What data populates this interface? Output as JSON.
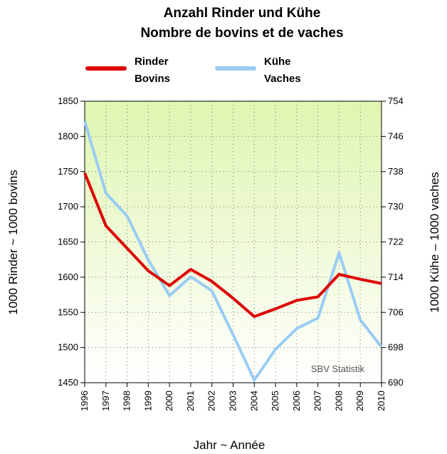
{
  "chart_data": {
    "type": "line",
    "title": "Anzahl Rinder und Kühe",
    "subtitle": "Nombre de bovins et de vaches",
    "x_label": "Jahr ~ Année",
    "y_label": "1000 Rinder ~ 1000 bovins",
    "y2_label": "1000 Kühe – 1000 vaches",
    "annotation": "SBV Statistik",
    "x": [
      1996,
      1997,
      1998,
      1999,
      2000,
      2001,
      2002,
      2003,
      2004,
      2005,
      2006,
      2007,
      2008,
      2009,
      2010
    ],
    "xlim": [
      1996,
      2010
    ],
    "xticks": [
      1996,
      1997,
      1998,
      1999,
      2000,
      2001,
      2002,
      2003,
      2004,
      2005,
      2006,
      2007,
      2008,
      2009,
      2010
    ],
    "ylim": [
      1450,
      1850
    ],
    "yticks": [
      1450,
      1500,
      1550,
      1600,
      1650,
      1700,
      1750,
      1800,
      1850
    ],
    "y2lim": [
      690,
      754
    ],
    "y2ticks": [
      690,
      698,
      706,
      714,
      722,
      730,
      738,
      746,
      754
    ],
    "grid": true,
    "series": [
      {
        "name": "Rinder",
        "name_fr": "Bovins",
        "color": "#dd0000",
        "values": [
          1748,
          1673,
          1641,
          1609,
          1588,
          1611,
          1594,
          1570,
          1544,
          1555,
          1567,
          1572,
          1604,
          1597,
          1591
        ]
      },
      {
        "name": "Kühe",
        "name_fr": "Vaches",
        "color": "#99ccf5",
        "axis": "y2",
        "values": [
          749.5,
          733.1,
          727.9,
          717.9,
          709.8,
          714.1,
          710.9,
          700.9,
          690.6,
          697.6,
          702.3,
          704.7,
          719.5,
          704.3,
          698.1
        ]
      }
    ]
  }
}
